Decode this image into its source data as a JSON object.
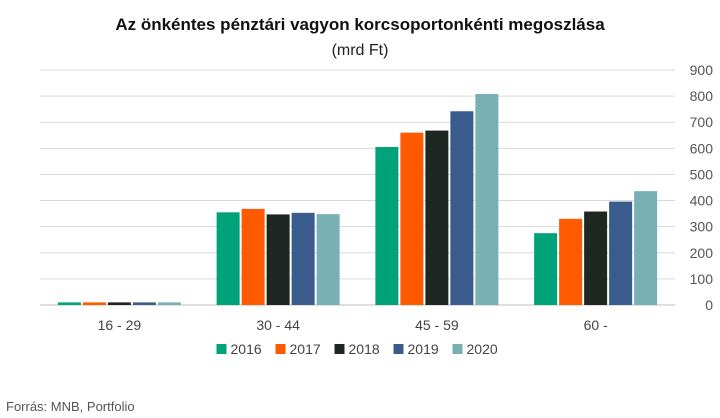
{
  "chart_data": {
    "type": "bar",
    "title": "Az önkéntes pénztári vagyon korcsoportonkénti megoszlása",
    "subtitle": "(mrd Ft)",
    "categories": [
      "16 - 29",
      "30 - 44",
      "45 - 59",
      "60 -"
    ],
    "series": [
      {
        "name": "2016",
        "color": "#00a27a",
        "values": [
          10,
          355,
          605,
          275
        ]
      },
      {
        "name": "2017",
        "color": "#ff5a00",
        "values": [
          10,
          368,
          660,
          330
        ]
      },
      {
        "name": "2018",
        "color": "#1e2721",
        "values": [
          10,
          347,
          668,
          358
        ]
      },
      {
        "name": "2019",
        "color": "#3a5c8c",
        "values": [
          10,
          353,
          742,
          396
        ]
      },
      {
        "name": "2020",
        "color": "#79b0b6",
        "values": [
          10,
          348,
          808,
          436
        ]
      }
    ],
    "yticks": [
      "0",
      "100",
      "200",
      "300",
      "400",
      "500",
      "600",
      "700",
      "800",
      "900"
    ],
    "ylim": [
      0,
      900
    ],
    "y_axis_side": "right",
    "grid": true,
    "legend_position": "bottom",
    "source": "Forrás: MNB, Portfolio"
  }
}
